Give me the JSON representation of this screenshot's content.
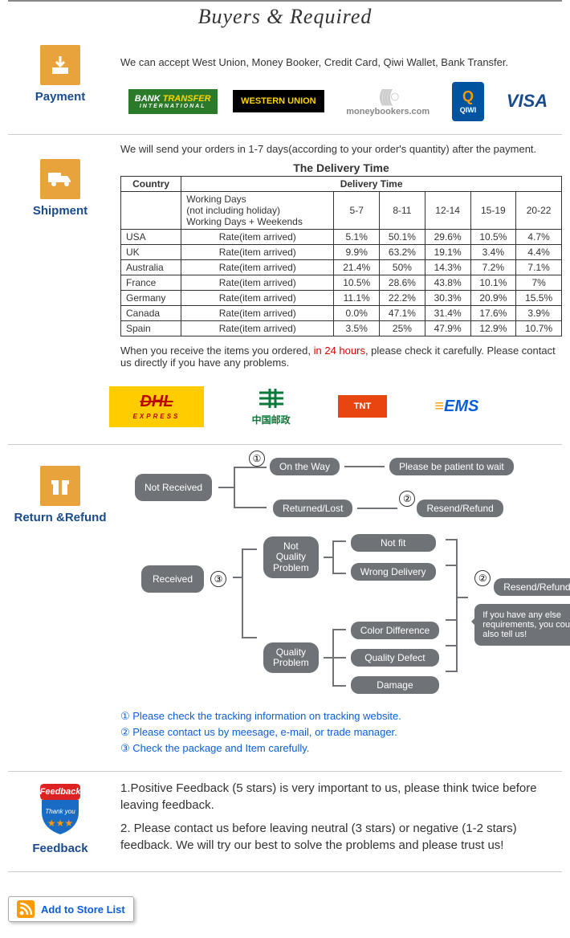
{
  "header_title": "Buyers & Required",
  "payment": {
    "label": "Payment",
    "text": "We can accept West Union, Money Booker, Credit Card, Qiwi Wallet, Bank Transfer.",
    "logos": {
      "bank_transfer": "BANK TRANSFER",
      "bank_transfer_sub": "INTERNATIONAL",
      "western_union": "WESTERN UNION",
      "moneybookers": "moneybookers.com",
      "qiwi": "QIWI",
      "visa": "VISA"
    }
  },
  "shipment": {
    "label": "Shipment",
    "intro": "We will send your orders in 1-7 days(according to your order's quantity) after the payment.",
    "table_title": "The Delivery Time",
    "headers": {
      "country": "Country",
      "delivery_time": "Delivery Time",
      "working_days_line1": "Working Days",
      "working_days_line2": "(not including holiday)",
      "working_days_line3": "Working Days + Weekends",
      "rate_label": "Rate(item arrived)"
    },
    "time_cols": [
      "5-7",
      "8-11",
      "12-14",
      "15-19",
      "20-22"
    ],
    "rows": [
      {
        "country": "USA",
        "rates": [
          "5.1%",
          "50.1%",
          "29.6%",
          "10.5%",
          "4.7%"
        ]
      },
      {
        "country": "UK",
        "rates": [
          "9.9%",
          "63.2%",
          "19.1%",
          "3.4%",
          "4.4%"
        ]
      },
      {
        "country": "Australia",
        "rates": [
          "21.4%",
          "50%",
          "14.3%",
          "7.2%",
          "7.1%"
        ]
      },
      {
        "country": "France",
        "rates": [
          "10.5%",
          "28.6%",
          "43.8%",
          "10.1%",
          "7%"
        ]
      },
      {
        "country": "Germany",
        "rates": [
          "11.1%",
          "22.2%",
          "30.3%",
          "20.9%",
          "15.5%"
        ]
      },
      {
        "country": "Canada",
        "rates": [
          "0.0%",
          "47.1%",
          "31.4%",
          "17.6%",
          "3.9%"
        ]
      },
      {
        "country": "Spain",
        "rates": [
          "3.5%",
          "25%",
          "47.9%",
          "12.9%",
          "10.7%"
        ]
      }
    ],
    "note_prefix": "When you receive the items you ordered, ",
    "note_red": "in 24 hours",
    "note_suffix": ", please check it carefully. Please contact us directly if you have any problems.",
    "carriers": {
      "dhl": "DHL",
      "dhl_sub": "EXPRESS",
      "china_post": "中国邮政",
      "tnt": "TNT",
      "ems": "EMS"
    }
  },
  "refund": {
    "label": "Return &Refund",
    "nodes": {
      "not_received": "Not Received",
      "on_the_way": "On the Way",
      "returned_lost": "Returned/Lost",
      "patient": "Please be patient to wait",
      "resend_refund": "Resend/Refund",
      "received": "Received",
      "not_quality_l1": "Not",
      "not_quality_l2": "Quality",
      "not_quality_l3": "Problem",
      "quality_l1": "Quality",
      "quality_l2": "Problem",
      "not_fit": "Not fit",
      "wrong_delivery": "Wrong Delivery",
      "color_diff": "Color Difference",
      "quality_defect": "Quality Defect",
      "damage": "Damage",
      "resend_refund_discount": "Resend/Refund/Discount",
      "speech": "If you have any else requirements, you could also tell us!"
    },
    "circled": {
      "c1": "①",
      "c2": "②",
      "c3": "③"
    },
    "legend": [
      "① Please check the tracking information on tracking website.",
      "② Please contact us by meesage, e-mail, or trade manager.",
      "③ Check the package and Item carefully."
    ]
  },
  "feedback": {
    "label": "Feedback",
    "badge_text": "Feedback",
    "badge_sub": "Thank you",
    "line1": "1.Positive Feedback (5 stars) is very important to us, please think twice before leaving feedback.",
    "line2": "2. Please contact us before leaving neutral (3 stars) or negative (1-2 stars) feedback. We will try our best to solve the problems and please trust us!"
  },
  "addstore": "Add to Store List",
  "colors": {
    "accent_blue": "#1a4b8c",
    "orange": "#e8a33d",
    "pill_gray": "#6f7277",
    "red": "#d00"
  }
}
